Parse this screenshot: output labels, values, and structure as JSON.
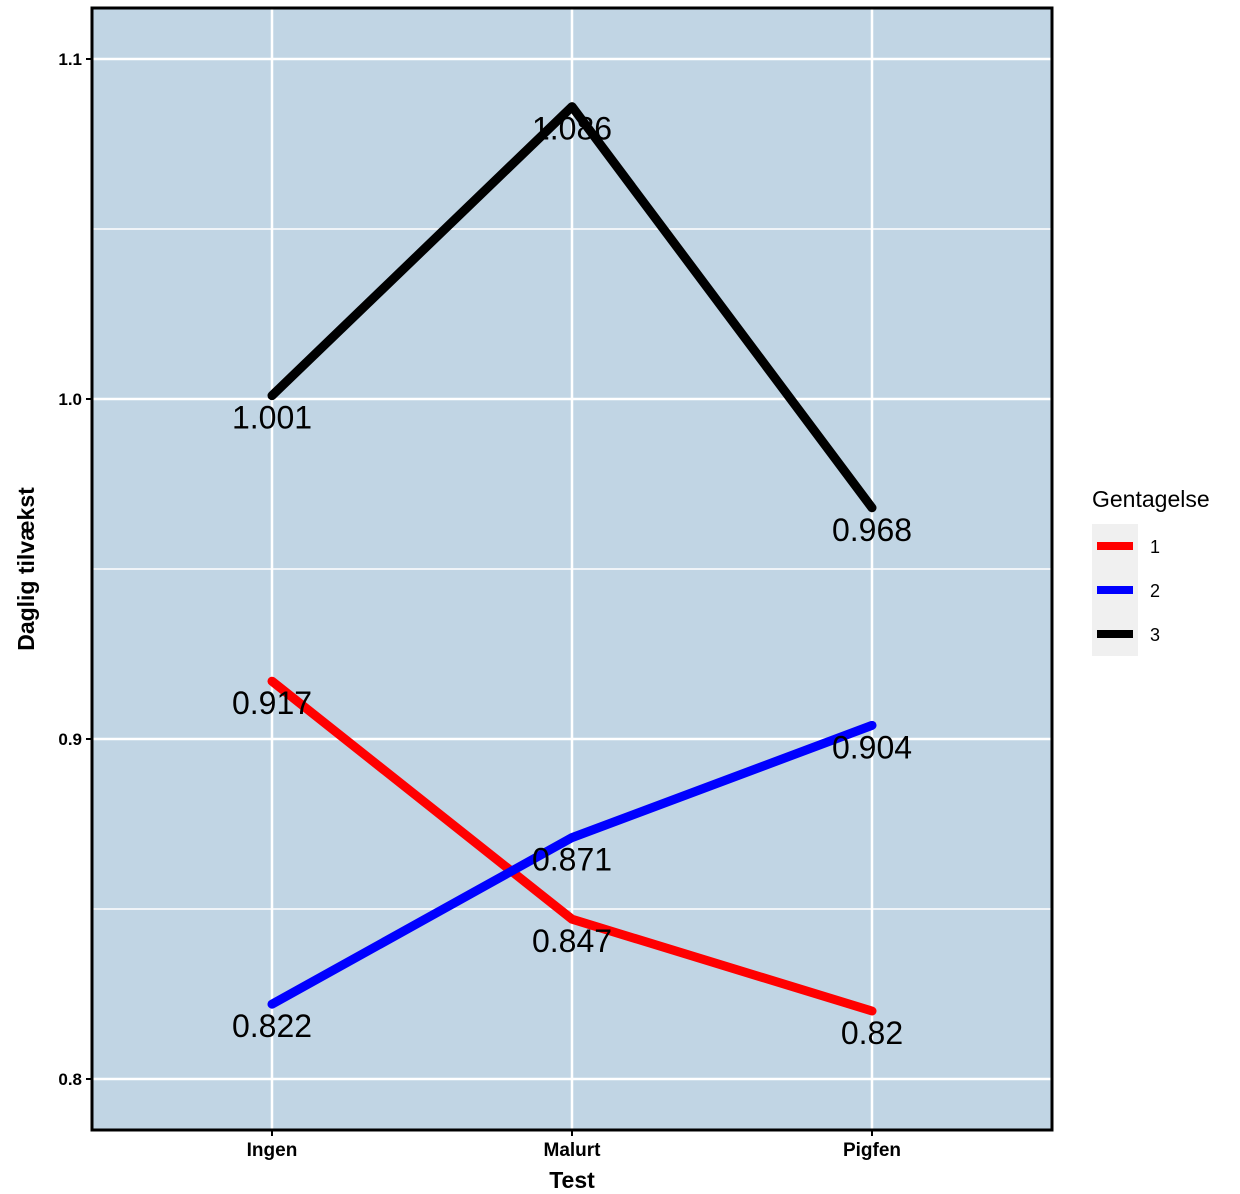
{
  "chart_data": {
    "type": "line",
    "categories": [
      "Ingen",
      "Malurt",
      "Pigfen"
    ],
    "xlabel": "Test",
    "ylabel": "Daglig tilvækst",
    "ylim": [
      0.785,
      1.115
    ],
    "yticks": [
      0.8,
      0.9,
      1.0,
      1.1
    ],
    "ytick_labels": [
      "0.8",
      "0.9",
      "1.0",
      "1.1"
    ],
    "grid": true,
    "legend": {
      "title": "Gentagelse",
      "position": "right"
    },
    "panel_background": "#c1d5e4",
    "series": [
      {
        "name": "1",
        "color": "#ff0000",
        "values": [
          0.917,
          0.847,
          0.82
        ],
        "labels": [
          "0.917",
          "0.847",
          "0.82"
        ]
      },
      {
        "name": "2",
        "color": "#0000ff",
        "values": [
          0.822,
          0.871,
          0.904
        ],
        "labels": [
          "0.822",
          "0.871",
          "0.904"
        ]
      },
      {
        "name": "3",
        "color": "#000000",
        "values": [
          1.001,
          1.086,
          0.968
        ],
        "labels": [
          "1.001",
          "1.086",
          "0.968"
        ]
      }
    ]
  }
}
